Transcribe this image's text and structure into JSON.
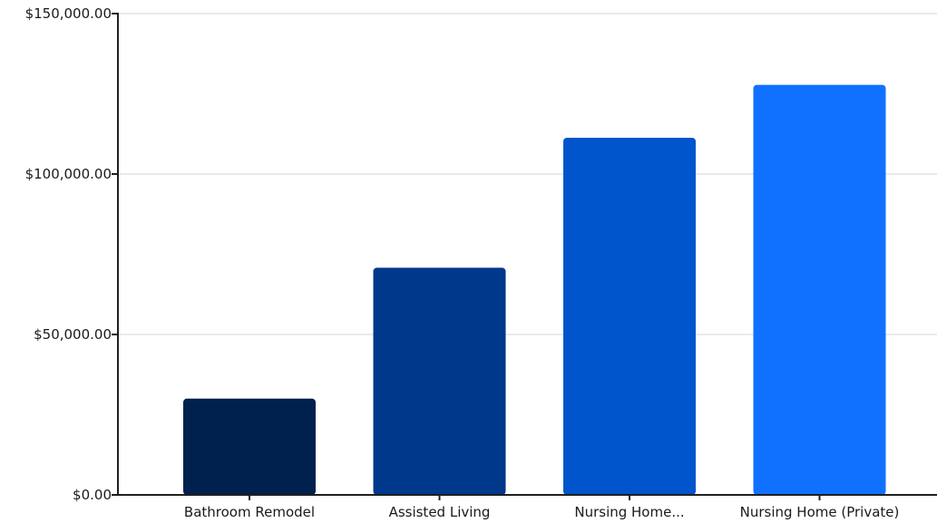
{
  "chart_data": {
    "type": "bar",
    "title": "",
    "xlabel": "",
    "ylabel": "",
    "categories": [
      "Bathroom Remodel",
      "Assisted Living",
      "Nursing Home...",
      "Nursing Home (Private)"
    ],
    "values": [
      30000,
      70800,
      111300,
      127800
    ],
    "colors": [
      "#00214d",
      "#00388c",
      "#0055cc",
      "#1071ff"
    ],
    "ylim": [
      0,
      150000
    ],
    "yticks": [
      0,
      50000,
      100000,
      150000
    ],
    "ytick_labels": [
      "$0.00",
      "$50,000.00",
      "$100,000.00",
      "$150,000.00"
    ],
    "grid": true,
    "legend": "none"
  }
}
